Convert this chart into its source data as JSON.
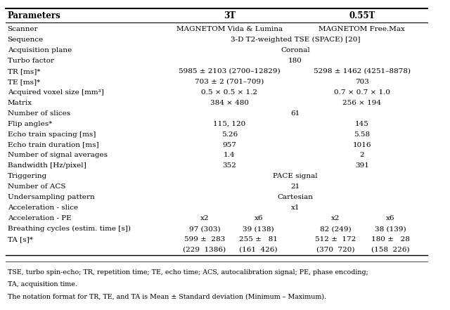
{
  "header_row": [
    "Parameters",
    "3T",
    "0.55T"
  ],
  "rows": [
    {
      "param": "Scanner",
      "span": false,
      "vals": [
        "MAGNETOM Vida & Lumina",
        "MAGNETOM Free.Max"
      ]
    },
    {
      "param": "Sequence",
      "span": true,
      "vals": [
        "3-D T2-weighted TSE (SPACE) [20]"
      ]
    },
    {
      "param": "Acquisition plane",
      "span": true,
      "vals": [
        "Coronal"
      ]
    },
    {
      "param": "Turbo factor",
      "span": true,
      "vals": [
        "180"
      ]
    },
    {
      "param": "TR [ms]*",
      "span": false,
      "vals": [
        "5985 ± 2103 (2700–12829)",
        "5298 ± 1462 (4251–8878)"
      ]
    },
    {
      "param": "TE [ms]*",
      "span": false,
      "vals": [
        "703 ± 2 (701–709)",
        "703"
      ]
    },
    {
      "param": "Acquired voxel size [mm³]",
      "span": false,
      "vals": [
        "0.5 × 0.5 × 1.2",
        "0.7 × 0.7 × 1.0"
      ]
    },
    {
      "param": "Matrix",
      "span": false,
      "vals": [
        "384 × 480",
        "256 × 194"
      ]
    },
    {
      "param": "Number of slices",
      "span": true,
      "vals": [
        "61"
      ]
    },
    {
      "param": "Flip angles*",
      "span": false,
      "vals": [
        "115, 120",
        "145"
      ]
    },
    {
      "param": "Echo train spacing [ms]",
      "span": false,
      "vals": [
        "5.26",
        "5.58"
      ]
    },
    {
      "param": "Echo train duration [ms]",
      "span": false,
      "vals": [
        "957",
        "1016"
      ]
    },
    {
      "param": "Number of signal averages",
      "span": false,
      "vals": [
        "1.4",
        "2"
      ]
    },
    {
      "param": "Bandwidth [Hz/pixel]",
      "span": false,
      "vals": [
        "352",
        "391"
      ]
    },
    {
      "param": "Triggering",
      "span": true,
      "vals": [
        "PACE signal"
      ]
    },
    {
      "param": "Number of ACS",
      "span": true,
      "vals": [
        "21"
      ]
    },
    {
      "param": "Undersampling pattern",
      "span": true,
      "vals": [
        "Cartesian"
      ]
    },
    {
      "param": "Acceleration - slice",
      "span": true,
      "vals": [
        "x1"
      ]
    },
    {
      "param": "Acceleration - PE",
      "span": false,
      "quad": true,
      "vals": [
        "x2",
        "x6",
        "x2",
        "x6"
      ]
    },
    {
      "param": "Breathing cycles (estim. time [s])",
      "span": false,
      "quad": true,
      "vals": [
        "97 (303)",
        "39 (138)",
        "82 (249)",
        "38 (139)"
      ]
    },
    {
      "param": "TA [s]*",
      "span": false,
      "quad": true,
      "vals": [
        "599 ±  283",
        "255 ±   81",
        "512 ±  172",
        "180 ±   28"
      ]
    },
    {
      "param": "",
      "span": false,
      "quad": true,
      "vals": [
        "(229  1386)",
        "(161  426)",
        "(370  720)",
        "(158  226)"
      ]
    }
  ],
  "footnote1": "TSE, turbo spin-echo; TR, repetition time; TE, echo time; ACS, autocalibration signal; PE, phase encoding;",
  "footnote2": "TA, acquisition time.",
  "footnote3": "The notation format for TR, TE, and TA is Mean ± Standard deviation (Minimum – Maximum).",
  "fig_width": 6.4,
  "fig_height": 4.41
}
